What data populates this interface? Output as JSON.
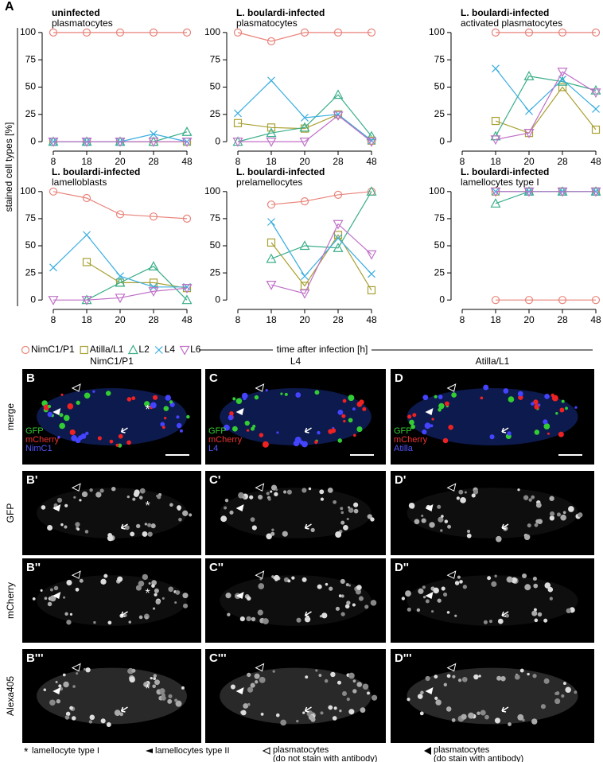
{
  "figure": {
    "panel_label": "A",
    "y_label": "stained cell types [%]",
    "x_label": "time after infection [h]",
    "legend": [
      {
        "name": "NimC1/P1",
        "color": "#e8837a",
        "marker": "circle"
      },
      {
        "name": "Atilla/L1",
        "color": "#a8a032",
        "marker": "square"
      },
      {
        "name": "L2",
        "color": "#3aae8a",
        "marker": "triangle-up"
      },
      {
        "name": "L4",
        "color": "#3aaee0",
        "marker": "cross"
      },
      {
        "name": "L6",
        "color": "#c070c8",
        "marker": "triangle-down"
      }
    ]
  },
  "chart_data": [
    {
      "type": "line",
      "title": "uninfected",
      "subtitle": "plasmatocytes",
      "categories": [
        "8",
        "18",
        "20",
        "28",
        "48"
      ],
      "ylim": [
        -5,
        105
      ],
      "yticks": [
        0,
        25,
        50,
        75,
        100
      ],
      "series": [
        {
          "values": [
            100,
            100,
            100,
            100,
            100
          ]
        },
        {
          "values": [
            0,
            0,
            0,
            0,
            0
          ]
        },
        {
          "values": [
            0,
            0,
            0,
            0,
            9
          ]
        },
        {
          "values": [
            0,
            0,
            0,
            7,
            0
          ]
        },
        {
          "values": [
            0,
            0,
            0,
            0,
            0
          ]
        }
      ]
    },
    {
      "type": "line",
      "title": "L. boulardi-infected",
      "subtitle": "plasmatocytes",
      "categories": [
        "8",
        "18",
        "20",
        "28",
        "48"
      ],
      "ylim": [
        -5,
        105
      ],
      "yticks": [
        0,
        25,
        50,
        75,
        100
      ],
      "series": [
        {
          "values": [
            100,
            92,
            100,
            100,
            100
          ]
        },
        {
          "values": [
            17,
            13,
            12,
            25,
            1
          ]
        },
        {
          "values": [
            0,
            8,
            13,
            43,
            5
          ]
        },
        {
          "values": [
            26,
            56,
            22,
            25,
            1
          ]
        },
        {
          "values": [
            0,
            0,
            0,
            24,
            0
          ]
        }
      ]
    },
    {
      "type": "line",
      "title": "L. boulardi-infected",
      "subtitle": "activated plasmatocytes",
      "categories": [
        "8",
        "18",
        "20",
        "28",
        "48"
      ],
      "ylim": [
        -5,
        105
      ],
      "yticks": [
        0,
        25,
        50,
        75,
        100
      ],
      "series": [
        {
          "values": [
            null,
            100,
            100,
            100,
            100
          ]
        },
        {
          "values": [
            null,
            19,
            8,
            50,
            11
          ]
        },
        {
          "values": [
            null,
            5,
            60,
            55,
            47
          ]
        },
        {
          "values": [
            null,
            67,
            28,
            57,
            30
          ]
        },
        {
          "values": [
            null,
            2,
            8,
            64,
            45
          ]
        }
      ]
    },
    {
      "type": "line",
      "title": "L. boulardi-infected",
      "subtitle": "lamelloblasts",
      "categories": [
        "8",
        "18",
        "20",
        "28",
        "48"
      ],
      "ylim": [
        -5,
        105
      ],
      "yticks": [
        0,
        25,
        50,
        75,
        100
      ],
      "series": [
        {
          "values": [
            100,
            94,
            79,
            77,
            75
          ]
        },
        {
          "values": [
            null,
            35,
            16,
            16,
            11
          ]
        },
        {
          "values": [
            null,
            0,
            16,
            31,
            0
          ]
        },
        {
          "values": [
            30,
            60,
            22,
            12,
            12
          ]
        },
        {
          "values": [
            0,
            0,
            2,
            8,
            11
          ]
        }
      ]
    },
    {
      "type": "line",
      "title": "L. boulardi-infected",
      "subtitle": "prelamellocytes",
      "categories": [
        "8",
        "18",
        "20",
        "28",
        "48"
      ],
      "ylim": [
        -5,
        105
      ],
      "yticks": [
        0,
        25,
        50,
        75,
        100
      ],
      "series": [
        {
          "values": [
            null,
            88,
            91,
            97,
            100
          ]
        },
        {
          "values": [
            null,
            53,
            13,
            60,
            9
          ]
        },
        {
          "values": [
            null,
            38,
            50,
            48,
            100
          ]
        },
        {
          "values": [
            null,
            72,
            22,
            57,
            24
          ]
        },
        {
          "values": [
            null,
            14,
            6,
            70,
            42
          ]
        }
      ]
    },
    {
      "type": "line",
      "title": "L. boulardi-infected",
      "subtitle": "lamellocytes type I",
      "categories": [
        "8",
        "18",
        "20",
        "28",
        "48"
      ],
      "ylim": [
        -5,
        105
      ],
      "yticks": [
        0,
        25,
        50,
        75,
        100
      ],
      "series": [
        {
          "values": [
            null,
            0,
            0,
            0,
            0
          ]
        },
        {
          "values": [
            null,
            100,
            100,
            100,
            100
          ]
        },
        {
          "values": [
            null,
            89,
            100,
            100,
            100
          ]
        },
        {
          "values": [
            null,
            100,
            100,
            100,
            100
          ]
        },
        {
          "values": [
            null,
            100,
            100,
            100,
            100
          ]
        }
      ]
    }
  ],
  "images": {
    "columns": [
      "NimC1/P1",
      "L4",
      "Atilla/L1"
    ],
    "rows": [
      "merge",
      "GFP",
      "mCherry",
      "Alexa405"
    ],
    "panels": [
      [
        "B",
        "C",
        "D"
      ],
      [
        "B'",
        "C'",
        "D'"
      ],
      [
        "B''",
        "C''",
        "D''"
      ],
      [
        "B'''",
        "C'''",
        "D'''"
      ]
    ],
    "channels": [
      [
        "GFP",
        "mCherry",
        "NimC1"
      ],
      [
        "GFP",
        "mCherry",
        "L4"
      ],
      [
        "GFP",
        "mCherry",
        "Atilla"
      ]
    ],
    "asterisk": "*",
    "footer": [
      "lamellocyte type I",
      "lamellocytes type II",
      "plasmatocytes\n(do not stain with antibody)",
      "plasmatocytes\n(do stain with antibody)"
    ]
  }
}
